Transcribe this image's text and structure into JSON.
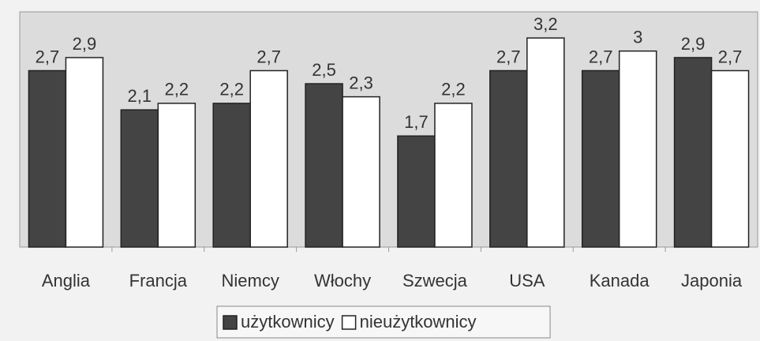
{
  "chart_data": {
    "type": "bar",
    "categories": [
      "Anglia",
      "Francja",
      "Niemcy",
      "Włochy",
      "Szwecja",
      "USA",
      "Kanada",
      "Japonia"
    ],
    "series": [
      {
        "name": "użytkownicy",
        "color": "#444444",
        "values": [
          2.7,
          2.1,
          2.2,
          2.5,
          1.7,
          2.7,
          2.7,
          2.9
        ],
        "value_labels": [
          "2,7",
          "2,1",
          "2,2",
          "2,5",
          "1,7",
          "2,7",
          "2,7",
          "2,9"
        ]
      },
      {
        "name": "nieużytkownicy",
        "color": "#ffffff",
        "values": [
          2.9,
          2.2,
          2.7,
          2.3,
          2.2,
          3.2,
          3,
          2.7
        ],
        "value_labels": [
          "2,9",
          "2,2",
          "2,7",
          "2,3",
          "2,2",
          "3,2",
          "3",
          "2,7"
        ]
      }
    ],
    "ylim": [
      0,
      3.6
    ],
    "legend": "bottom"
  }
}
